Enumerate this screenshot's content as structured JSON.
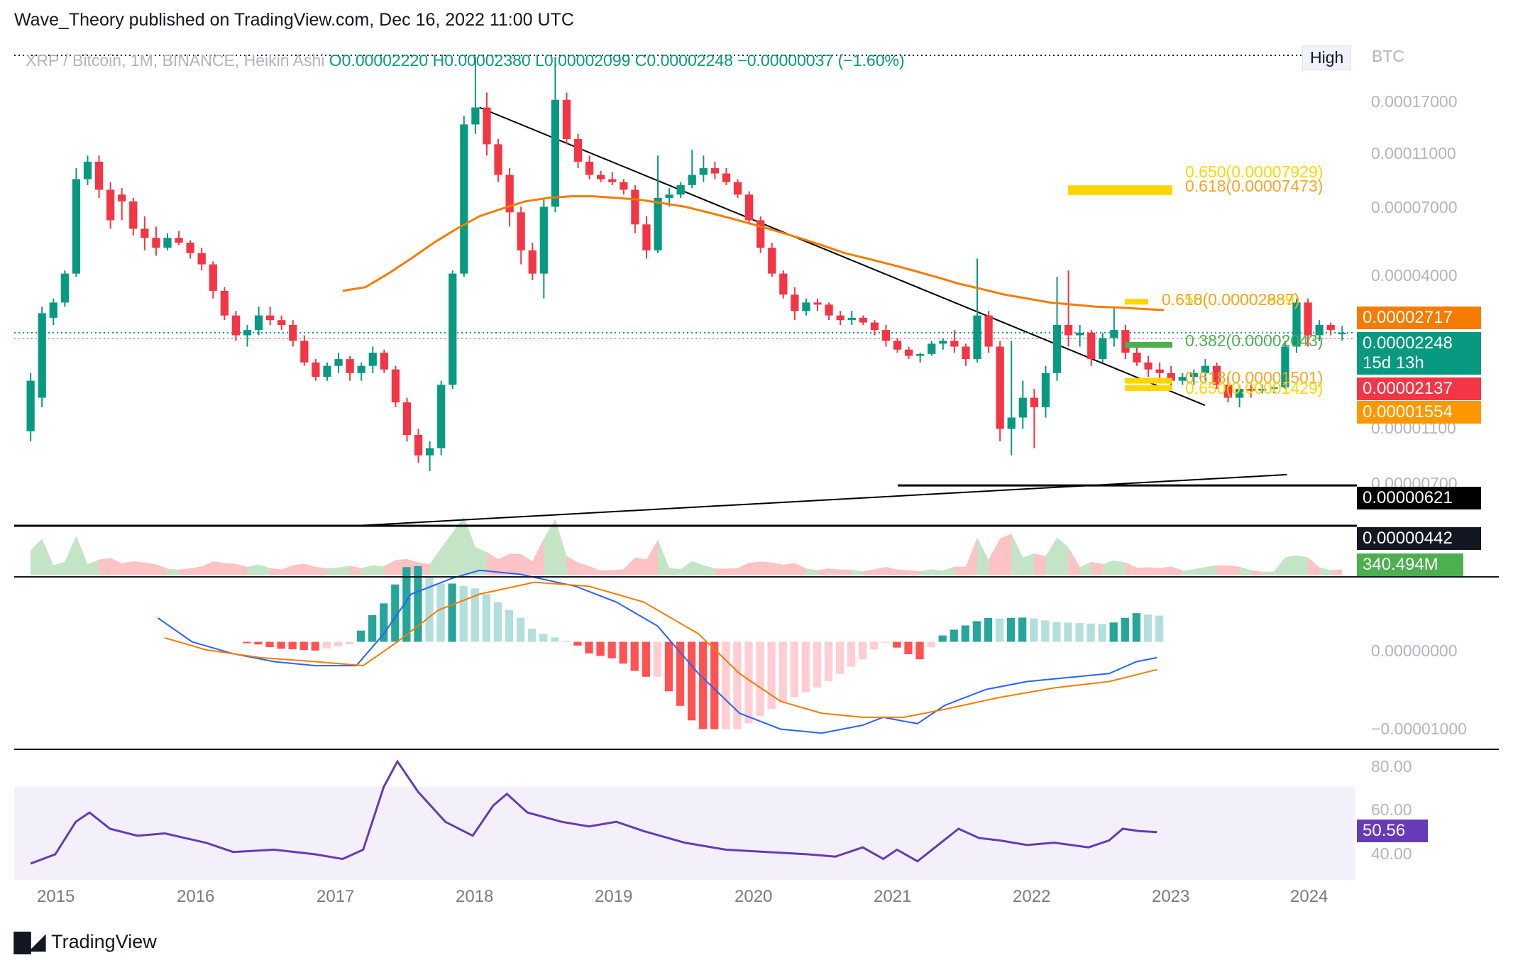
{
  "header": {
    "publisher_line": "Wave_Theory published on TradingView.com, Dec 16, 2022 11:00 UTC"
  },
  "legend": {
    "symbol": "XRP / Bitcoin, 1M, BINANCE, Heikin Ashi",
    "o": "O0.00002220",
    "h": "H0.00002380",
    "l": "L0.00002099",
    "c": "C0.00002248",
    "change": "−0.00000037 (−1.60%)"
  },
  "toolbar": {
    "high_label": "High",
    "currency": "BTC"
  },
  "colors": {
    "up": "#089981",
    "down": "#f23645",
    "ema": "#f57c00",
    "fib": "#ffd600",
    "macd": "#2962ff",
    "signal": "#f57c00",
    "rsi": "#673ab7",
    "fib_green": "#4caf50"
  },
  "price_axis": [
    "0.00017000",
    "0.00011000",
    "0.00007000",
    "0.00004000",
    "0.00001100",
    "0.00000700"
  ],
  "price_labels": {
    "ema": "0.00002717",
    "last": "0.00002248",
    "countdown": "15d 13h",
    "red": "0.00002137",
    "orange": "0.00001554",
    "support1": "0.00000621",
    "support2": "0.00000442",
    "volume": "340.494M"
  },
  "fib_labels": {
    "upper_a": "0.618(0.00007473)",
    "upper_b": "0.650(0.00007929)",
    "mid_a": "0.618(0.00002887)",
    "mid_b": "0.650(0.00002989)",
    "green": "0.382(0.00002043)",
    "low_a": "0.618(0.00001501)",
    "low_b": "0.650(0.00001429)"
  },
  "macd_axis": [
    "0.00000000",
    "−0.00001000"
  ],
  "rsi_axis": [
    "80.00",
    "60.00",
    "40.00"
  ],
  "rsi_value": "50.56",
  "x_axis": [
    "2015",
    "2016",
    "2017",
    "2018",
    "2019",
    "2020",
    "2021",
    "2022",
    "2023",
    "2024"
  ],
  "footer": {
    "brand": "TradingView"
  },
  "chart_data": {
    "type": "candlestick",
    "title": "XRP / Bitcoin, 1M, BINANCE, Heikin Ashi",
    "scale": "log",
    "ylim": [
      3.5e-06,
      0.00023
    ],
    "x_start": 2014.72,
    "x_step": 0.08333,
    "ohlc": [
      [
        9.8e-06,
        1.6e-05,
        9e-06,
        1.5e-05
      ],
      [
        1.3e-05,
        2.8e-05,
        1.2e-05,
        2.65e-05
      ],
      [
        2.55e-05,
        3e-05,
        2.4e-05,
        2.9e-05
      ],
      [
        2.9e-05,
        3.8e-05,
        2.8e-05,
        3.7e-05
      ],
      [
        3.7e-05,
        9e-05,
        3.6e-05,
        8.2e-05
      ],
      [
        8.2e-05,
        0.0001,
        7.8e-05,
        9.5e-05
      ],
      [
        9.5e-05,
        0.0001,
        7e-05,
        7.5e-05
      ],
      [
        7.5e-05,
        8e-05,
        5.4e-05,
        5.8e-05
      ],
      [
        7.2e-05,
        7.6e-05,
        5.8e-05,
        6.8e-05
      ],
      [
        6.8e-05,
        7e-05,
        5.1e-05,
        5.4e-05
      ],
      [
        5.4e-05,
        6e-05,
        4.5e-05,
        5e-05
      ],
      [
        5e-05,
        5.5e-05,
        4.3e-05,
        4.6e-05
      ],
      [
        4.6e-05,
        5.2e-05,
        4.5e-05,
        5e-05
      ],
      [
        5e-05,
        5.3e-05,
        4.7e-05,
        4.8e-05
      ],
      [
        4.8e-05,
        4.9e-05,
        4.2e-05,
        4.4e-05
      ],
      [
        4.4e-05,
        4.6e-05,
        3.8e-05,
        4e-05
      ],
      [
        4e-05,
        4.1e-05,
        3e-05,
        3.2e-05
      ],
      [
        3.2e-05,
        3.3e-05,
        2.5e-05,
        2.6e-05
      ],
      [
        2.6e-05,
        2.7e-05,
        2.1e-05,
        2.2e-05
      ],
      [
        2.2e-05,
        2.4e-05,
        2e-05,
        2.3e-05
      ],
      [
        2.3e-05,
        2.8e-05,
        2.2e-05,
        2.6e-05
      ],
      [
        2.6e-05,
        2.8e-05,
        2.4e-05,
        2.5e-05
      ],
      [
        2.5e-05,
        2.6e-05,
        2.3e-05,
        2.4e-05
      ],
      [
        2.4e-05,
        2.5e-05,
        2e-05,
        2.1e-05
      ],
      [
        2.1e-05,
        2.2e-05,
        1.7e-05,
        1.75e-05
      ],
      [
        1.75e-05,
        1.8e-05,
        1.5e-05,
        1.55e-05
      ],
      [
        1.55e-05,
        1.75e-05,
        1.5e-05,
        1.7e-05
      ],
      [
        1.7e-05,
        1.9e-05,
        1.6e-05,
        1.8e-05
      ],
      [
        1.8e-05,
        1.85e-05,
        1.5e-05,
        1.6e-05
      ],
      [
        1.6e-05,
        1.75e-05,
        1.5e-05,
        1.7e-05
      ],
      [
        1.7e-05,
        2e-05,
        1.6e-05,
        1.9e-05
      ],
      [
        1.9e-05,
        1.95e-05,
        1.6e-05,
        1.65e-05
      ],
      [
        1.65e-05,
        1.7e-05,
        1.2e-05,
        1.25e-05
      ],
      [
        1.25e-05,
        1.3e-05,
        9e-06,
        9.5e-06
      ],
      [
        9.5e-06,
        1e-05,
        7.5e-06,
        8e-06
      ],
      [
        8e-06,
        9e-06,
        7e-06,
        8.5e-06
      ],
      [
        8.5e-06,
        1.5e-05,
        8e-06,
        1.45e-05
      ],
      [
        1.45e-05,
        3.8e-05,
        1.4e-05,
        3.7e-05
      ],
      [
        3.7e-05,
        0.00014,
        3.6e-05,
        0.00013
      ],
      [
        0.00013,
        0.00023,
        0.00012,
        0.00015
      ],
      [
        0.00015,
        0.00017,
        0.0001,
        0.00011
      ],
      [
        0.00011,
        0.000115,
        8e-05,
        8.5e-05
      ],
      [
        8.5e-05,
        9e-05,
        5.5e-05,
        6.2e-05
      ],
      [
        6.2e-05,
        6.5e-05,
        4e-05,
        4.5e-05
      ],
      [
        4.5e-05,
        4.8e-05,
        3.5e-05,
        3.7e-05
      ],
      [
        3.7e-05,
        7e-05,
        3e-05,
        6.5e-05
      ],
      [
        6.5e-05,
        0.00023,
        6.2e-05,
        0.00016
      ],
      [
        0.00016,
        0.00017,
        0.00011,
        0.000115
      ],
      [
        0.000115,
        0.00012,
        9e-05,
        9.5e-05
      ],
      [
        9.5e-05,
        0.0001,
        8.2e-05,
        8.5e-05
      ],
      [
        8.5e-05,
        8.8e-05,
        8e-05,
        8.2e-05
      ],
      [
        8.2e-05,
        8.7e-05,
        7.8e-05,
        8e-05
      ],
      [
        8e-05,
        8.2e-05,
        7.2e-05,
        7.5e-05
      ],
      [
        7.5e-05,
        7.8e-05,
        5.2e-05,
        5.6e-05
      ],
      [
        5.6e-05,
        6e-05,
        4.2e-05,
        4.5e-05
      ],
      [
        4.5e-05,
        0.0001,
        4.4e-05,
        7e-05
      ],
      [
        7e-05,
        7.6e-05,
        6.5e-05,
        7.2e-05
      ],
      [
        7.2e-05,
        8e-05,
        7e-05,
        7.8e-05
      ],
      [
        7.8e-05,
        0.000105,
        7.6e-05,
        8.5e-05
      ],
      [
        8.5e-05,
        0.0001,
        8e-05,
        9e-05
      ],
      [
        9e-05,
        9.5e-05,
        8.2e-05,
        8.6e-05
      ],
      [
        8.6e-05,
        9e-05,
        7.8e-05,
        8e-05
      ],
      [
        8e-05,
        8.2e-05,
        7e-05,
        7.2e-05
      ],
      [
        7.2e-05,
        7.4e-05,
        5.6e-05,
        5.8e-05
      ],
      [
        5.8e-05,
        6e-05,
        4.4e-05,
        4.6e-05
      ],
      [
        4.6e-05,
        4.8e-05,
        3.6e-05,
        3.7e-05
      ],
      [
        3.7e-05,
        3.8e-05,
        3e-05,
        3.1e-05
      ],
      [
        3.1e-05,
        3.3e-05,
        2.5e-05,
        2.7e-05
      ],
      [
        2.7e-05,
        3e-05,
        2.6e-05,
        2.9e-05
      ],
      [
        2.9e-05,
        3e-05,
        2.7e-05,
        2.85e-05
      ],
      [
        2.85e-05,
        2.9e-05,
        2.5e-05,
        2.6e-05
      ],
      [
        2.6e-05,
        2.7e-05,
        2.4e-05,
        2.5e-05
      ],
      [
        2.5e-05,
        2.7e-05,
        2.4e-05,
        2.55e-05
      ],
      [
        2.55e-05,
        2.6e-05,
        2.4e-05,
        2.45e-05
      ],
      [
        2.45e-05,
        2.5e-05,
        2.2e-05,
        2.3e-05
      ],
      [
        2.3e-05,
        2.4e-05,
        2e-05,
        2.1e-05
      ],
      [
        2.1e-05,
        2.15e-05,
        1.9e-05,
        1.95e-05
      ],
      [
        1.95e-05,
        2e-05,
        1.8e-05,
        1.85e-05
      ],
      [
        1.85e-05,
        1.9e-05,
        1.75e-05,
        1.88e-05
      ],
      [
        1.88e-05,
        2.1e-05,
        1.85e-05,
        2.05e-05
      ],
      [
        2.05e-05,
        2.15e-05,
        1.95e-05,
        2.1e-05
      ],
      [
        2.1e-05,
        2.3e-05,
        1.9e-05,
        2e-05
      ],
      [
        2e-05,
        2.05e-05,
        1.7e-05,
        1.8e-05
      ],
      [
        1.8e-05,
        4.2e-05,
        1.75e-05,
        2.6e-05
      ],
      [
        2.6e-05,
        2.7e-05,
        1.9e-05,
        2e-05
      ],
      [
        2e-05,
        2.1e-05,
        9e-06,
        1e-05
      ],
      [
        1e-05,
        2.1e-05,
        8e-06,
        1.1e-05
      ],
      [
        1.1e-05,
        1.5e-05,
        1e-05,
        1.3e-05
      ],
      [
        1.3e-05,
        1.4e-05,
        8.5e-06,
        1.2e-05
      ],
      [
        1.2e-05,
        1.7e-05,
        1.1e-05,
        1.6e-05
      ],
      [
        1.6e-05,
        3.6e-05,
        1.5e-05,
        2.4e-05
      ],
      [
        2.4e-05,
        3.8e-05,
        2e-05,
        2.2e-05
      ],
      [
        2.2e-05,
        2.4e-05,
        2e-05,
        2.25e-05
      ],
      [
        2.25e-05,
        2.3e-05,
        1.7e-05,
        1.8e-05
      ],
      [
        1.8e-05,
        2.25e-05,
        1.75e-05,
        2.15e-05
      ],
      [
        2.15e-05,
        2.8e-05,
        2e-05,
        2.3e-05
      ],
      [
        2.3e-05,
        2.4e-05,
        1.8e-05,
        1.9e-05
      ],
      [
        1.9e-05,
        2e-05,
        1.7e-05,
        1.75e-05
      ],
      [
        1.75e-05,
        1.85e-05,
        1.55e-05,
        1.65e-05
      ],
      [
        1.65e-05,
        1.75e-05,
        1.5e-05,
        1.6e-05
      ],
      [
        1.6e-05,
        1.7e-05,
        1.4e-05,
        1.5e-05
      ],
      [
        1.5e-05,
        1.6e-05,
        1.45e-05,
        1.55e-05
      ],
      [
        1.55e-05,
        1.65e-05,
        1.45e-05,
        1.6e-05
      ],
      [
        1.6e-05,
        1.8e-05,
        1.5e-05,
        1.7e-05
      ],
      [
        1.7e-05,
        1.75e-05,
        1.4e-05,
        1.45e-05
      ],
      [
        1.45e-05,
        1.55e-05,
        1.25e-05,
        1.3e-05
      ],
      [
        1.3e-05,
        1.45e-05,
        1.2e-05,
        1.4e-05
      ],
      [
        1.4e-05,
        1.45e-05,
        1.3e-05,
        1.38e-05
      ],
      [
        1.38e-05,
        1.45e-05,
        1.35e-05,
        1.4e-05
      ],
      [
        1.4e-05,
        1.45e-05,
        1.35e-05,
        1.42e-05
      ],
      [
        1.42e-05,
        2.1e-05,
        1.4e-05,
        2e-05
      ],
      [
        2e-05,
        3e-05,
        1.9e-05,
        2.9e-05
      ],
      [
        2.9e-05,
        3e-05,
        2e-05,
        2.2e-05
      ],
      [
        2.2e-05,
        2.5e-05,
        2.1e-05,
        2.4e-05
      ],
      [
        2.4e-05,
        2.45e-05,
        2.2e-05,
        2.3e-05
      ],
      [
        2.22e-05,
        2.38e-05,
        2.1e-05,
        2.25e-05
      ]
    ],
    "ema": [
      3.2e-05,
      3.3e-05,
      3.7e-05,
      4.2e-05,
      4.8e-05,
      5.4e-05,
      6e-05,
      6.4e-05,
      6.8e-05,
      7e-05,
      7.1e-05,
      7.1e-05,
      7e-05,
      6.9e-05,
      6.7e-05,
      6.5e-05,
      6.2e-05,
      5.9e-05,
      5.6e-05,
      5.3e-05,
      5e-05,
      4.7e-05,
      4.4e-05,
      4.2e-05,
      4e-05,
      3.8e-05,
      3.6e-05,
      3.4e-05,
      3.25e-05,
      3.1e-05,
      3e-05,
      2.9e-05,
      2.85e-05,
      2.8e-05,
      2.78e-05,
      2.75e-05,
      2.72e-05
    ],
    "ema_x_start": 2017.0,
    "ema_x_step": 0.1667,
    "support_lines": [
      6.21e-06,
      4.42e-06
    ],
    "volume_last": "340.494M",
    "macd_ylim": [
      -1.3e-05,
      8e-06
    ],
    "macd": [
      [
        2015.65,
        3e-06
      ],
      [
        2015.9,
        0.0
      ],
      [
        2016.2,
        -1.5e-06
      ],
      [
        2016.5,
        -2.5e-06
      ],
      [
        2016.8,
        -3e-06
      ],
      [
        2017.1,
        -3e-06
      ],
      [
        2017.3,
        1e-06
      ],
      [
        2017.5,
        6e-06
      ],
      [
        2017.8,
        8e-06
      ],
      [
        2018.0,
        9e-06
      ],
      [
        2018.3,
        8.5e-06
      ],
      [
        2018.7,
        7e-06
      ],
      [
        2019.0,
        5e-06
      ],
      [
        2019.3,
        2e-06
      ],
      [
        2019.6,
        -4e-06
      ],
      [
        2019.9,
        -9e-06
      ],
      [
        2020.2,
        -1.1e-05
      ],
      [
        2020.5,
        -1.15e-05
      ],
      [
        2020.8,
        -1.05e-05
      ],
      [
        2020.95,
        -9.5e-06
      ],
      [
        2021.1,
        -1e-05
      ],
      [
        2021.2,
        -1.03e-05
      ],
      [
        2021.4,
        -8e-06
      ],
      [
        2021.7,
        -6e-06
      ],
      [
        2022.0,
        -5e-06
      ],
      [
        2022.3,
        -4.5e-06
      ],
      [
        2022.6,
        -4e-06
      ],
      [
        2022.8,
        -2.5e-06
      ],
      [
        2022.95,
        -2e-06
      ]
    ],
    "signal": [
      [
        2015.7,
        5e-07
      ],
      [
        2016.0,
        -1e-06
      ],
      [
        2016.4,
        -2e-06
      ],
      [
        2016.8,
        -2.5e-06
      ],
      [
        2017.15,
        -3e-06
      ],
      [
        2017.4,
        0.0
      ],
      [
        2017.7,
        4e-06
      ],
      [
        2018.0,
        6e-06
      ],
      [
        2018.4,
        7.5e-06
      ],
      [
        2018.8,
        7e-06
      ],
      [
        2019.2,
        5e-06
      ],
      [
        2019.6,
        1e-06
      ],
      [
        2019.9,
        -4e-06
      ],
      [
        2020.2,
        -7.5e-06
      ],
      [
        2020.5,
        -9e-06
      ],
      [
        2020.8,
        -9.5e-06
      ],
      [
        2021.1,
        -9.5e-06
      ],
      [
        2021.4,
        -8.5e-06
      ],
      [
        2021.8,
        -7e-06
      ],
      [
        2022.2,
        -5.8e-06
      ],
      [
        2022.6,
        -5e-06
      ],
      [
        2022.95,
        -3.5e-06
      ]
    ],
    "rsi_ylim": [
      30,
      85
    ],
    "rsi": [
      [
        2014.72,
        37
      ],
      [
        2014.9,
        41
      ],
      [
        2015.05,
        55
      ],
      [
        2015.15,
        59
      ],
      [
        2015.3,
        52
      ],
      [
        2015.5,
        49
      ],
      [
        2015.7,
        50
      ],
      [
        2016.0,
        46
      ],
      [
        2016.2,
        42
      ],
      [
        2016.5,
        43
      ],
      [
        2016.8,
        41
      ],
      [
        2017.0,
        39
      ],
      [
        2017.15,
        43
      ],
      [
        2017.3,
        70
      ],
      [
        2017.4,
        81
      ],
      [
        2017.55,
        68
      ],
      [
        2017.75,
        55
      ],
      [
        2017.95,
        49
      ],
      [
        2018.1,
        62
      ],
      [
        2018.2,
        67
      ],
      [
        2018.35,
        59
      ],
      [
        2018.6,
        55
      ],
      [
        2018.8,
        53
      ],
      [
        2019.0,
        55
      ],
      [
        2019.2,
        51
      ],
      [
        2019.5,
        46
      ],
      [
        2019.8,
        43
      ],
      [
        2020.1,
        42
      ],
      [
        2020.4,
        41
      ],
      [
        2020.6,
        40
      ],
      [
        2020.8,
        44
      ],
      [
        2020.95,
        39
      ],
      [
        2021.05,
        43
      ],
      [
        2021.2,
        38
      ],
      [
        2021.35,
        45
      ],
      [
        2021.5,
        52
      ],
      [
        2021.65,
        48
      ],
      [
        2021.8,
        47
      ],
      [
        2022.0,
        45
      ],
      [
        2022.2,
        46
      ],
      [
        2022.45,
        44
      ],
      [
        2022.6,
        47
      ],
      [
        2022.7,
        52
      ],
      [
        2022.82,
        51
      ],
      [
        2022.95,
        50.56
      ]
    ],
    "x_range": [
      2014.6,
      2024.4
    ]
  }
}
